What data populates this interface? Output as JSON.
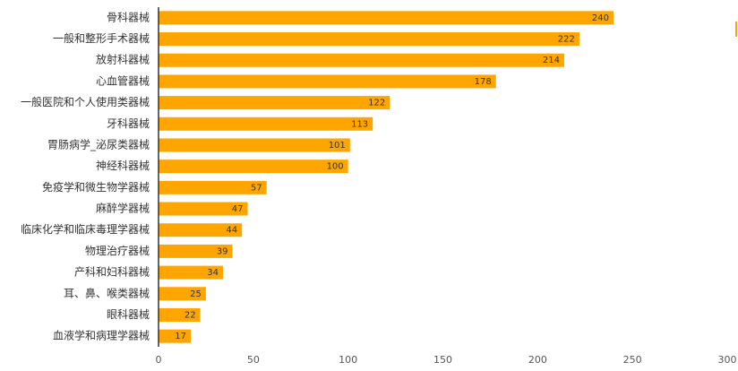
{
  "chart_data": {
    "type": "bar",
    "orientation": "horizontal",
    "categories": [
      "骨科器械",
      "一般和整形手术器械",
      "放射科器械",
      "心血管器械",
      "一般医院和个人使用类器械",
      "牙科器械",
      "胃肠病学_泌尿类器械",
      "神经科器械",
      "免疫学和微生物学器械",
      "麻醉学器械",
      "临床化学和临床毒理学器械",
      "物理治疗器械",
      "产科和妇科器械",
      "耳、鼻、喉类器械",
      "眼科器械",
      "血液学和病理学器械"
    ],
    "values": [
      240,
      222,
      214,
      178,
      122,
      113,
      101,
      100,
      57,
      47,
      44,
      39,
      34,
      25,
      22,
      17
    ],
    "color": "#ffa500",
    "xlim": [
      0,
      300
    ],
    "xticks": [
      0,
      50,
      100,
      150,
      200,
      250,
      300
    ],
    "grid": false
  }
}
